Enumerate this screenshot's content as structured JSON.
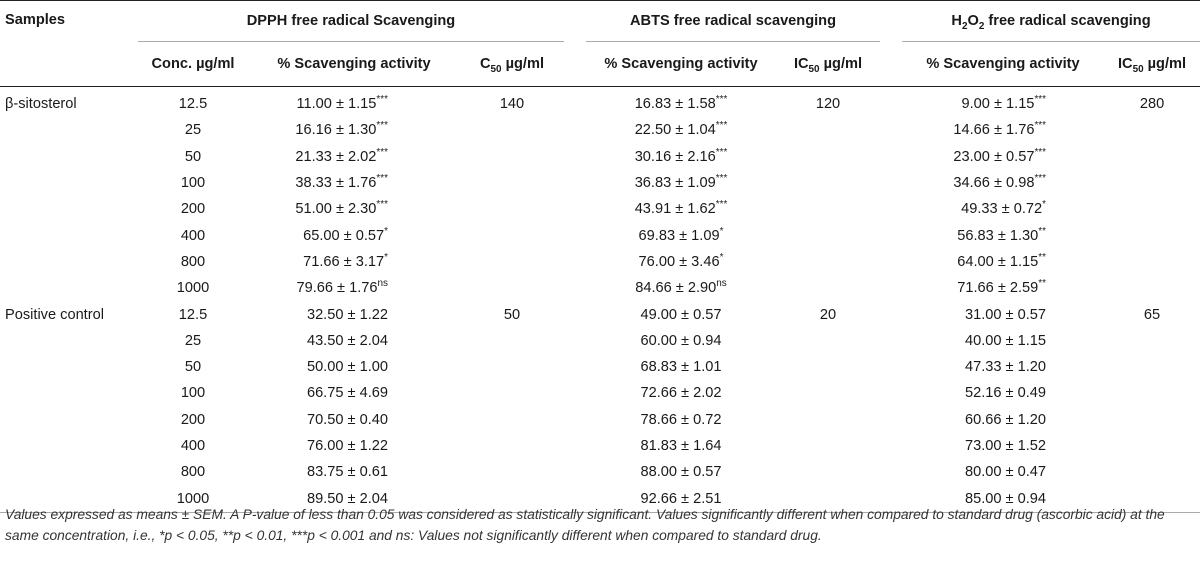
{
  "headers": {
    "samples": "Samples",
    "groups": [
      {
        "name": "DPPH free radical Scavenging"
      },
      {
        "name": "ABTS free radical scavenging"
      },
      {
        "name_pre": "H",
        "name_sub1": "2",
        "name_mid": "O",
        "name_sub2": "2",
        "name_post": " free radical scavenging"
      }
    ],
    "conc": "Conc. µg/ml",
    "scavenging": "% Scavenging activity",
    "c50_pre": "C",
    "c50_sub": "50",
    "c50_post": " µg/ml",
    "ic50_pre": "IC",
    "ic50_sub": "50",
    "ic50_post": " µg/ml"
  },
  "rows": [
    {
      "sample": "β-sitosterol",
      "conc": "12.5",
      "dpph": "11.00 ± 1.15",
      "dpph_sig": "***",
      "dpph_c50": "140",
      "abts": "16.83 ± 1.58",
      "abts_sig": "***",
      "abts_ic50": "120",
      "h2o2": "9.00 ± 1.15",
      "h2o2_sig": "***",
      "h2o2_ic50": "280"
    },
    {
      "sample": "",
      "conc": "25",
      "dpph": "16.16 ± 1.30",
      "dpph_sig": "***",
      "dpph_c50": "",
      "abts": "22.50 ± 1.04",
      "abts_sig": "***",
      "abts_ic50": "",
      "h2o2": "14.66 ± 1.76",
      "h2o2_sig": "***",
      "h2o2_ic50": ""
    },
    {
      "sample": "",
      "conc": "50",
      "dpph": "21.33 ± 2.02",
      "dpph_sig": "***",
      "dpph_c50": "",
      "abts": "30.16 ± 2.16",
      "abts_sig": "***",
      "abts_ic50": "",
      "h2o2": "23.00 ± 0.57",
      "h2o2_sig": "***",
      "h2o2_ic50": ""
    },
    {
      "sample": "",
      "conc": "100",
      "dpph": "38.33 ± 1.76",
      "dpph_sig": "***",
      "dpph_c50": "",
      "abts": "36.83 ± 1.09",
      "abts_sig": "***",
      "abts_ic50": "",
      "h2o2": "34.66 ± 0.98",
      "h2o2_sig": "***",
      "h2o2_ic50": ""
    },
    {
      "sample": "",
      "conc": "200",
      "dpph": "51.00 ± 2.30",
      "dpph_sig": "***",
      "dpph_c50": "",
      "abts": "43.91 ± 1.62",
      "abts_sig": "***",
      "abts_ic50": "",
      "h2o2": "49.33 ± 0.72",
      "h2o2_sig": "*",
      "h2o2_ic50": ""
    },
    {
      "sample": "",
      "conc": "400",
      "dpph": "65.00 ± 0.57",
      "dpph_sig": "*",
      "dpph_c50": "",
      "abts": "69.83 ± 1.09",
      "abts_sig": "*",
      "abts_ic50": "",
      "h2o2": "56.83 ± 1.30",
      "h2o2_sig": "**",
      "h2o2_ic50": ""
    },
    {
      "sample": "",
      "conc": "800",
      "dpph": "71.66 ± 3.17",
      "dpph_sig": "*",
      "dpph_c50": "",
      "abts": "76.00 ± 3.46",
      "abts_sig": "*",
      "abts_ic50": "",
      "h2o2": "64.00 ± 1.15",
      "h2o2_sig": "**",
      "h2o2_ic50": ""
    },
    {
      "sample": "",
      "conc": "1000",
      "dpph": "79.66 ± 1.76",
      "dpph_sig": "ns",
      "dpph_c50": "",
      "abts": "84.66 ± 2.90",
      "abts_sig": "ns",
      "abts_ic50": "",
      "h2o2": "71.66 ± 2.59",
      "h2o2_sig": "**",
      "h2o2_ic50": ""
    },
    {
      "sample": "Positive control",
      "conc": "12.5",
      "dpph": "32.50 ± 1.22",
      "dpph_sig": "",
      "dpph_c50": "50",
      "abts": "49.00 ± 0.57",
      "abts_sig": "",
      "abts_ic50": "20",
      "h2o2": "31.00 ± 0.57",
      "h2o2_sig": "",
      "h2o2_ic50": "65"
    },
    {
      "sample": "",
      "conc": "25",
      "dpph": "43.50 ± 2.04",
      "dpph_sig": "",
      "dpph_c50": "",
      "abts": "60.00 ± 0.94",
      "abts_sig": "",
      "abts_ic50": "",
      "h2o2": "40.00 ± 1.15",
      "h2o2_sig": "",
      "h2o2_ic50": ""
    },
    {
      "sample": "",
      "conc": "50",
      "dpph": "50.00 ± 1.00",
      "dpph_sig": "",
      "dpph_c50": "",
      "abts": "68.83 ± 1.01",
      "abts_sig": "",
      "abts_ic50": "",
      "h2o2": "47.33 ± 1.20",
      "h2o2_sig": "",
      "h2o2_ic50": ""
    },
    {
      "sample": "",
      "conc": "100",
      "dpph": "66.75 ± 4.69",
      "dpph_sig": "",
      "dpph_c50": "",
      "abts": "72.66 ± 2.02",
      "abts_sig": "",
      "abts_ic50": "",
      "h2o2": "52.16 ± 0.49",
      "h2o2_sig": "",
      "h2o2_ic50": ""
    },
    {
      "sample": "",
      "conc": "200",
      "dpph": "70.50 ± 0.40",
      "dpph_sig": "",
      "dpph_c50": "",
      "abts": "78.66 ± 0.72",
      "abts_sig": "",
      "abts_ic50": "",
      "h2o2": "60.66 ± 1.20",
      "h2o2_sig": "",
      "h2o2_ic50": ""
    },
    {
      "sample": "",
      "conc": "400",
      "dpph": "76.00 ± 1.22",
      "dpph_sig": "",
      "dpph_c50": "",
      "abts": "81.83 ± 1.64",
      "abts_sig": "",
      "abts_ic50": "",
      "h2o2": "73.00 ± 1.52",
      "h2o2_sig": "",
      "h2o2_ic50": ""
    },
    {
      "sample": "",
      "conc": "800",
      "dpph": "83.75 ± 0.61",
      "dpph_sig": "",
      "dpph_c50": "",
      "abts": "88.00 ± 0.57",
      "abts_sig": "",
      "abts_ic50": "",
      "h2o2": "80.00 ± 0.47",
      "h2o2_sig": "",
      "h2o2_ic50": ""
    },
    {
      "sample": "",
      "conc": "1000",
      "dpph": "89.50 ± 2.04",
      "dpph_sig": "",
      "dpph_c50": "",
      "abts": "92.66 ± 2.51",
      "abts_sig": "",
      "abts_ic50": "",
      "h2o2": "85.00 ± 0.94",
      "h2o2_sig": "",
      "h2o2_ic50": ""
    }
  ],
  "footnote": "Values expressed as means ± SEM. A P-value of less than 0.05 was considered as statistically significant. Values significantly different when compared to standard drug (ascorbic acid) at the same concentration, i.e., *p < 0.05, **p < 0.01, ***p < 0.001 and ns: Values not significantly different when compared to standard drug."
}
